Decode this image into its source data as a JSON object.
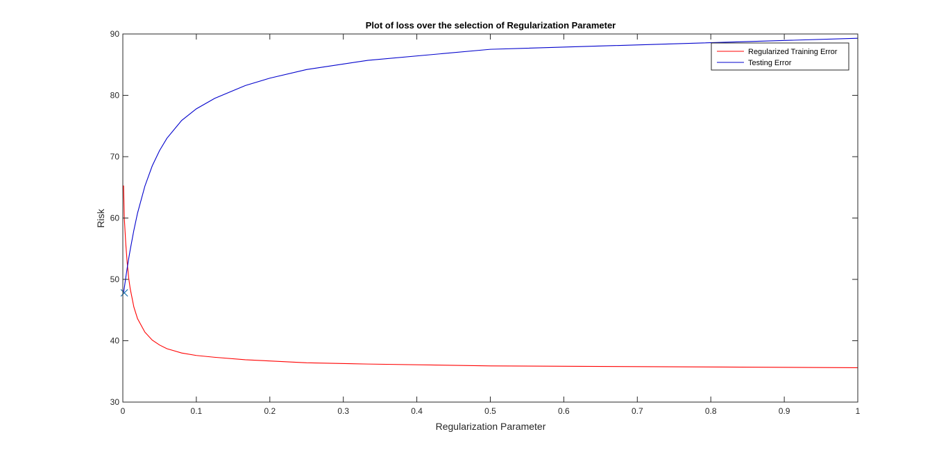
{
  "chart_data": {
    "type": "line",
    "title": "Plot of loss over the selection of Regularization Parameter",
    "xlabel": "Regularization Parameter",
    "ylabel": "Risk",
    "xlim": [
      0,
      1
    ],
    "ylim": [
      30,
      90
    ],
    "xticks": [
      0,
      0.1,
      0.2,
      0.3,
      0.4,
      0.5,
      0.6,
      0.7,
      0.8,
      0.9,
      1
    ],
    "xtick_labels": [
      "0",
      "0.1",
      "0.2",
      "0.3",
      "0.4",
      "0.5",
      "0.6",
      "0.7",
      "0.8",
      "0.9",
      "1"
    ],
    "yticks": [
      30,
      40,
      50,
      60,
      70,
      80,
      90
    ],
    "ytick_labels": [
      "30",
      "40",
      "50",
      "60",
      "70",
      "80",
      "90"
    ],
    "grid": false,
    "legend_position": "top-right",
    "series": [
      {
        "name": "Regularized Training Error",
        "color": "#ff0000",
        "x": [
          0.001,
          0.002,
          0.004,
          0.006,
          0.008,
          0.01,
          0.015,
          0.02,
          0.03,
          0.04,
          0.05,
          0.06,
          0.08,
          0.1,
          0.125,
          0.1667,
          0.2,
          0.25,
          0.3333,
          0.5,
          1
        ],
        "y": [
          65.3,
          60.0,
          55.8,
          52.6,
          50.2,
          48.5,
          45.5,
          43.6,
          41.4,
          40.1,
          39.3,
          38.7,
          38.0,
          37.6,
          37.3,
          36.9,
          36.7,
          36.4,
          36.2,
          35.9,
          35.6
        ]
      },
      {
        "name": "Testing Error",
        "color": "#0000cc",
        "x": [
          0.001,
          0.002,
          0.004,
          0.006,
          0.008,
          0.01,
          0.015,
          0.02,
          0.03,
          0.04,
          0.05,
          0.06,
          0.08,
          0.1,
          0.125,
          0.1667,
          0.2,
          0.25,
          0.3333,
          0.5,
          1
        ],
        "y": [
          47.8,
          48.6,
          50.3,
          51.9,
          53.4,
          54.8,
          58.0,
          60.8,
          65.2,
          68.5,
          71.0,
          73.0,
          75.9,
          77.8,
          79.5,
          81.6,
          82.8,
          84.2,
          85.7,
          87.5,
          89.3
        ]
      }
    ],
    "markers": [
      {
        "x": 0.002,
        "y": 47.8,
        "symbol": "x",
        "color": "#1f77b4"
      }
    ]
  }
}
